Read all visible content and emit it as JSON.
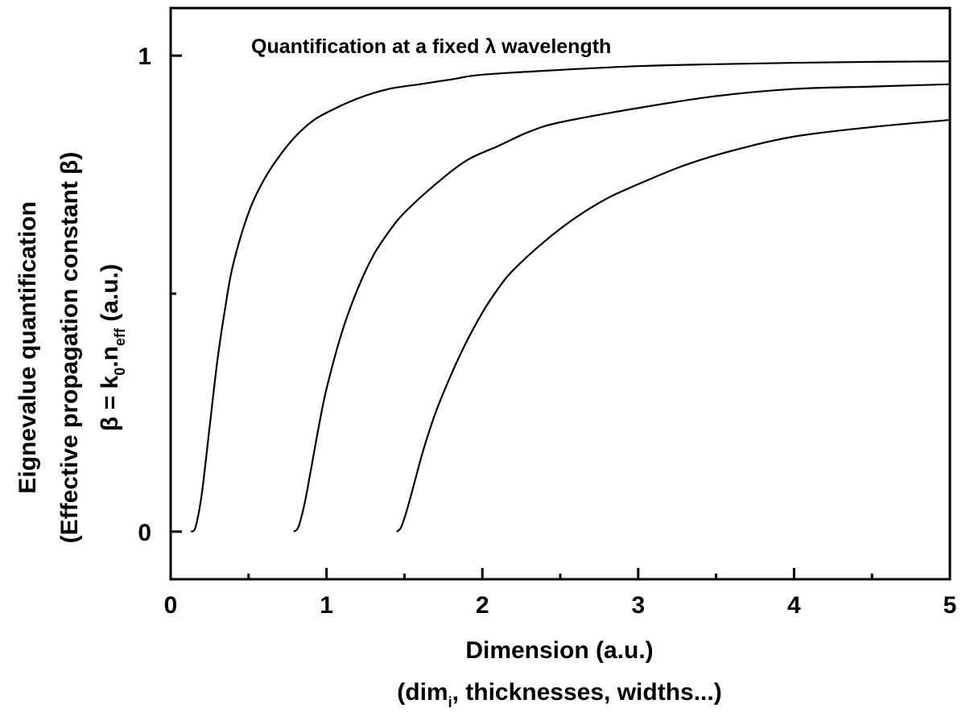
{
  "chart_data": {
    "type": "line",
    "title": "Quantification at a fixed λ wavelength",
    "xlabel_line1": "Dimension (a.u.)",
    "xlabel_line2_main": "(dim",
    "xlabel_line2_sub": "i",
    "xlabel_line2_rest": ", thicknesses, widths...)",
    "ylabel_line1": "Eignevalue quantification",
    "ylabel_line2": "(Effective propagation constant β)",
    "ylabel_line3_beta": "β = k",
    "ylabel_line3_k_sub": "0",
    "ylabel_line3_mid": ".n",
    "ylabel_line3_n_sub": "eff",
    "ylabel_line3_end": " (a.u.)",
    "xlim": [
      0,
      5
    ],
    "ylim": [
      -0.1,
      1.1
    ],
    "x_ticks": [
      {
        "value": 0,
        "label": "0"
      },
      {
        "value": 1,
        "label": "1"
      },
      {
        "value": 2,
        "label": "2"
      },
      {
        "value": 3,
        "label": "3"
      },
      {
        "value": 4,
        "label": "4"
      },
      {
        "value": 5,
        "label": "5"
      }
    ],
    "x_minor_ticks": [
      0.5,
      1.5,
      2.5,
      3.5,
      4.5
    ],
    "y_ticks": [
      {
        "value": 0,
        "label": "0"
      },
      {
        "value": 1,
        "label": "1"
      }
    ],
    "y_minor_ticks": [
      0.5
    ],
    "grid": false,
    "series": [
      {
        "x": [
          0.13,
          0.16,
          0.2,
          0.25,
          0.3,
          0.35,
          0.4,
          0.5,
          0.6,
          0.7,
          0.8,
          0.9,
          1.0,
          1.2,
          1.4,
          1.6,
          1.8,
          2.0,
          2.5,
          3.0,
          3.5,
          4.0,
          4.5,
          5.0
        ],
        "y": [
          0.0,
          0.01,
          0.08,
          0.22,
          0.36,
          0.47,
          0.56,
          0.67,
          0.74,
          0.79,
          0.83,
          0.86,
          0.88,
          0.91,
          0.93,
          0.94,
          0.95,
          0.96,
          0.97,
          0.978,
          0.982,
          0.985,
          0.987,
          0.988
        ]
      },
      {
        "x": [
          0.79,
          0.82,
          0.86,
          0.9,
          0.95,
          1.0,
          1.1,
          1.2,
          1.3,
          1.4,
          1.5,
          1.7,
          1.9,
          2.1,
          2.3,
          2.5,
          3.0,
          3.5,
          4.0,
          4.5,
          5.0
        ],
        "y": [
          0.0,
          0.01,
          0.06,
          0.13,
          0.22,
          0.3,
          0.42,
          0.51,
          0.58,
          0.63,
          0.67,
          0.73,
          0.78,
          0.81,
          0.84,
          0.86,
          0.89,
          0.915,
          0.93,
          0.935,
          0.94
        ]
      },
      {
        "x": [
          1.45,
          1.48,
          1.52,
          1.57,
          1.62,
          1.7,
          1.8,
          1.9,
          2.0,
          2.1,
          2.2,
          2.4,
          2.6,
          2.8,
          3.0,
          3.3,
          3.6,
          4.0,
          4.5,
          5.0
        ],
        "y": [
          0.0,
          0.01,
          0.05,
          0.11,
          0.17,
          0.25,
          0.33,
          0.4,
          0.46,
          0.51,
          0.55,
          0.61,
          0.66,
          0.7,
          0.73,
          0.77,
          0.8,
          0.83,
          0.85,
          0.865
        ]
      }
    ]
  }
}
